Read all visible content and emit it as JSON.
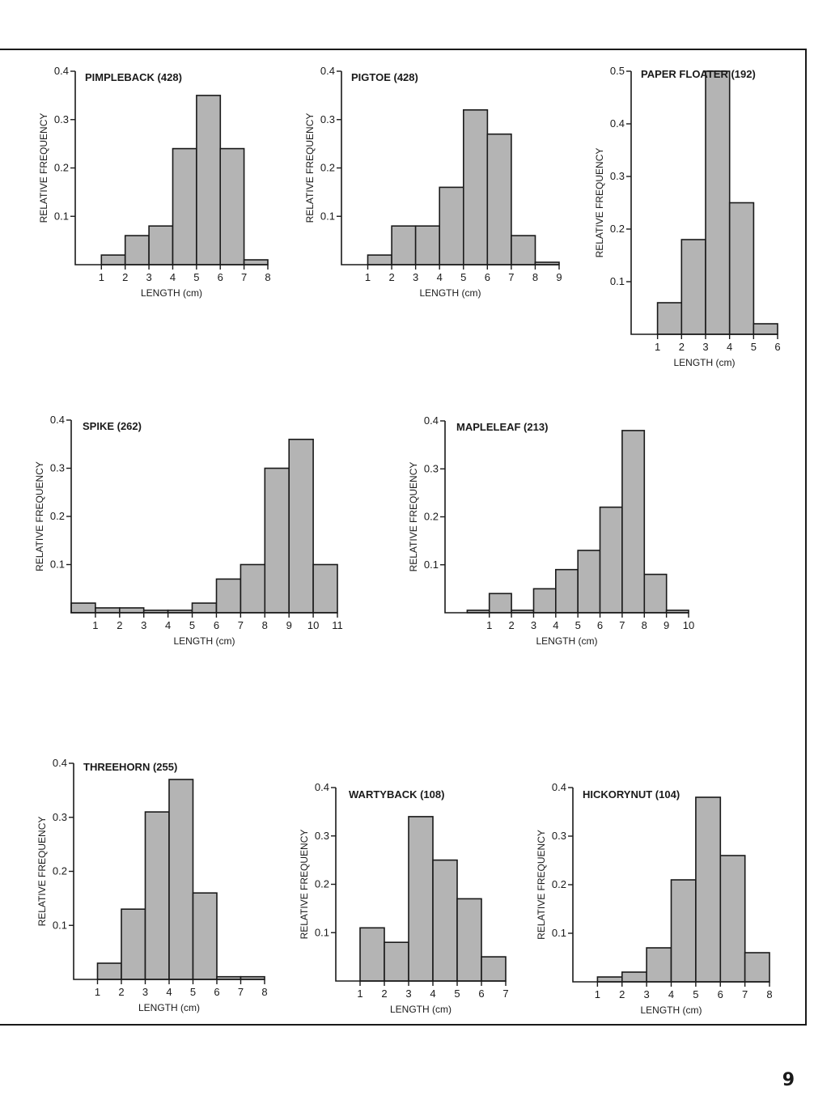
{
  "page_number": "9",
  "colors": {
    "bar_fill": "#b4b4b4",
    "ink": "#1a1a1a",
    "background": "#ffffff"
  },
  "chart_data": [
    {
      "type": "bar",
      "title": "PIMPLEBACK (428)",
      "xlabel": "LENGTH (cm)",
      "ylabel": "RELATIVE FREQUENCY",
      "x_ticks": [
        1,
        2,
        3,
        4,
        5,
        6,
        7,
        8
      ],
      "x_tick_labels": [
        "1",
        "2",
        "3",
        "4",
        "5",
        "6",
        "7",
        "8"
      ],
      "xlim": [
        -0.1,
        8
      ],
      "y_ticks": [
        0.1,
        0.2,
        0.3,
        0.4
      ],
      "y_tick_labels": [
        "0.1",
        "0.2",
        "0.3",
        "0.4"
      ],
      "ylim": [
        0,
        0.4
      ],
      "bins": [
        [
          1,
          2
        ],
        [
          2,
          3
        ],
        [
          3,
          4
        ],
        [
          4,
          5
        ],
        [
          5,
          6
        ],
        [
          6,
          7
        ],
        [
          7,
          8
        ]
      ],
      "values": [
        0.02,
        0.06,
        0.08,
        0.24,
        0.35,
        0.24,
        0.01
      ]
    },
    {
      "type": "bar",
      "title": "PIGTOE (428)",
      "xlabel": "LENGTH (cm)",
      "ylabel": "RELATIVE FREQUENCY",
      "x_ticks": [
        1,
        2,
        3,
        4,
        5,
        6,
        7,
        8,
        9
      ],
      "x_tick_labels": [
        "1",
        "2",
        "3",
        "4",
        "5",
        "6",
        "7",
        "8",
        "9"
      ],
      "xlim": [
        -0.1,
        9
      ],
      "y_ticks": [
        0.1,
        0.2,
        0.3,
        0.4
      ],
      "y_tick_labels": [
        "0.1",
        "0.2",
        "0.3",
        "0.4"
      ],
      "ylim": [
        0,
        0.4
      ],
      "bins": [
        [
          1,
          2
        ],
        [
          2,
          3
        ],
        [
          3,
          4
        ],
        [
          4,
          5
        ],
        [
          5,
          6
        ],
        [
          6,
          7
        ],
        [
          7,
          8
        ],
        [
          8,
          9
        ]
      ],
      "values": [
        0.02,
        0.08,
        0.08,
        0.16,
        0.32,
        0.27,
        0.06,
        0.005
      ]
    },
    {
      "type": "bar",
      "title": "PAPER FLOATER (192)",
      "xlabel": "LENGTH (cm)",
      "ylabel": "RELATIVE FREQUENCY",
      "x_ticks": [
        1,
        2,
        3,
        4,
        5,
        6
      ],
      "x_tick_labels": [
        "1",
        "2",
        "3",
        "4",
        "5",
        "6"
      ],
      "xlim": [
        -0.1,
        6
      ],
      "y_ticks": [
        0.1,
        0.2,
        0.3,
        0.4,
        0.5
      ],
      "y_tick_labels": [
        "0.1",
        "0.2",
        "0.3",
        "0.4",
        "0.5"
      ],
      "ylim": [
        0,
        0.5
      ],
      "bins": [
        [
          1,
          2
        ],
        [
          2,
          3
        ],
        [
          3,
          4
        ],
        [
          4,
          5
        ],
        [
          5,
          6
        ]
      ],
      "values": [
        0.06,
        0.18,
        0.5,
        0.25,
        0.02
      ]
    },
    {
      "type": "bar",
      "title": "SPIKE (262)",
      "xlabel": "LENGTH (cm)",
      "ylabel": "RELATIVE FREQUENCY",
      "x_ticks": [
        1,
        2,
        3,
        4,
        5,
        6,
        7,
        8,
        9,
        10,
        11
      ],
      "x_tick_labels": [
        "1",
        "2",
        "3",
        "4",
        "5",
        "6",
        "7",
        "8",
        "9",
        "10",
        "11"
      ],
      "xlim": [
        0,
        11
      ],
      "y_ticks": [
        0.1,
        0.2,
        0.3,
        0.4
      ],
      "y_tick_labels": [
        "0.1",
        "0.2",
        "0.3",
        "0.4"
      ],
      "ylim": [
        0,
        0.4
      ],
      "bins": [
        [
          0,
          1
        ],
        [
          1,
          2
        ],
        [
          2,
          3
        ],
        [
          3,
          4
        ],
        [
          4,
          5
        ],
        [
          5,
          6
        ],
        [
          6,
          7
        ],
        [
          7,
          8
        ],
        [
          8,
          9
        ],
        [
          9,
          10
        ],
        [
          10,
          11
        ]
      ],
      "values": [
        0.02,
        0.01,
        0.01,
        0.005,
        0.005,
        0.02,
        0.07,
        0.1,
        0.3,
        0.36,
        0.1
      ]
    },
    {
      "type": "bar",
      "title": "MAPLELEAF (213)",
      "xlabel": "LENGTH (cm)",
      "ylabel": "RELATIVE FREQUENCY",
      "x_ticks": [
        1,
        2,
        3,
        4,
        5,
        6,
        7,
        8,
        9,
        10
      ],
      "x_tick_labels": [
        "1",
        "2",
        "3",
        "4",
        "5",
        "6",
        "7",
        "8",
        "9",
        "10"
      ],
      "xlim": [
        -1,
        10
      ],
      "y_ticks": [
        0.1,
        0.2,
        0.3,
        0.4
      ],
      "y_tick_labels": [
        "0.1",
        "0.2",
        "0.3",
        "0.4"
      ],
      "ylim": [
        0,
        0.4
      ],
      "bins": [
        [
          0,
          1
        ],
        [
          1,
          2
        ],
        [
          2,
          3
        ],
        [
          3,
          4
        ],
        [
          4,
          5
        ],
        [
          5,
          6
        ],
        [
          6,
          7
        ],
        [
          7,
          8
        ],
        [
          8,
          9
        ],
        [
          9,
          10
        ]
      ],
      "values": [
        0.005,
        0.04,
        0.005,
        0.05,
        0.09,
        0.13,
        0.22,
        0.38,
        0.08,
        0.005
      ]
    },
    {
      "type": "bar",
      "title": "THREEHORN (255)",
      "xlabel": "LENGTH (cm)",
      "ylabel": "RELATIVE FREQUENCY",
      "x_ticks": [
        1,
        2,
        3,
        4,
        5,
        6,
        7,
        8
      ],
      "x_tick_labels": [
        "1",
        "2",
        "3",
        "4",
        "5",
        "6",
        "7",
        "8"
      ],
      "xlim": [
        0,
        8
      ],
      "y_ticks": [
        0.1,
        0.2,
        0.3,
        0.4
      ],
      "y_tick_labels": [
        "0.1",
        "0.2",
        "0.3",
        "0.4"
      ],
      "ylim": [
        0,
        0.4
      ],
      "bins": [
        [
          1,
          2
        ],
        [
          2,
          3
        ],
        [
          3,
          4
        ],
        [
          4,
          5
        ],
        [
          5,
          6
        ],
        [
          6,
          7
        ],
        [
          7,
          8
        ]
      ],
      "values": [
        0.03,
        0.13,
        0.31,
        0.37,
        0.16,
        0.005,
        0.005
      ]
    },
    {
      "type": "bar",
      "title": "WARTYBACK (108)",
      "xlabel": "LENGTH (cm)",
      "ylabel": "RELATIVE FREQUENCY",
      "x_ticks": [
        1,
        2,
        3,
        4,
        5,
        6,
        7
      ],
      "x_tick_labels": [
        "1",
        "2",
        "3",
        "4",
        "5",
        "6",
        "7"
      ],
      "xlim": [
        0,
        7
      ],
      "y_ticks": [
        0.1,
        0.2,
        0.3,
        0.4
      ],
      "y_tick_labels": [
        "0.1",
        "0.2",
        "0.3",
        "0.4"
      ],
      "ylim": [
        0,
        0.4
      ],
      "bins": [
        [
          1,
          2
        ],
        [
          2,
          3
        ],
        [
          3,
          4
        ],
        [
          4,
          5
        ],
        [
          5,
          6
        ],
        [
          6,
          7
        ]
      ],
      "values": [
        0.11,
        0.08,
        0.34,
        0.25,
        0.17,
        0.05
      ]
    },
    {
      "type": "bar",
      "title": "HICKORYNUT (104)",
      "xlabel": "LENGTH (cm)",
      "ylabel": "RELATIVE FREQUENCY",
      "x_ticks": [
        1,
        2,
        3,
        4,
        5,
        6,
        7,
        8
      ],
      "x_tick_labels": [
        "1",
        "2",
        "3",
        "4",
        "5",
        "6",
        "7",
        "8"
      ],
      "xlim": [
        0,
        8
      ],
      "y_ticks": [
        0.1,
        0.2,
        0.3,
        0.4
      ],
      "y_tick_labels": [
        "0.1",
        "0.2",
        "0.3",
        "0.4"
      ],
      "ylim": [
        0,
        0.4
      ],
      "bins": [
        [
          1,
          2
        ],
        [
          2,
          3
        ],
        [
          3,
          4
        ],
        [
          4,
          5
        ],
        [
          5,
          6
        ],
        [
          6,
          7
        ],
        [
          7,
          8
        ]
      ],
      "values": [
        0.01,
        0.02,
        0.07,
        0.21,
        0.38,
        0.26,
        0.06
      ]
    }
  ]
}
